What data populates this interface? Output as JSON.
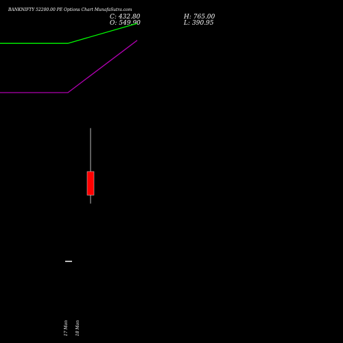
{
  "header": {
    "title": "BANKNIFTY 52200.00 PE Options Chart MunafaSutra.com",
    "ohlc": {
      "c_label": "C:",
      "c_value": "432.80",
      "o_label": "O:",
      "o_value": "549.90",
      "h_label": "H:",
      "h_value": "765.00",
      "l_label": "L:",
      "l_value": "390.95"
    }
  },
  "chart_data": {
    "type": "candlestick",
    "categories": [
      "17 Mon",
      "18 Mon"
    ],
    "candles": [
      {
        "date": "17 Mon",
        "open": 11,
        "high": 11,
        "low": 11,
        "close": 11,
        "color": "#ffffff"
      },
      {
        "date": "18 Mon",
        "open": 549.9,
        "high": 765.0,
        "low": 390.95,
        "close": 432.8,
        "color": "#ff0000"
      }
    ],
    "ylim": [
      -300,
      1400
    ],
    "overlays": [
      {
        "color": "#00ff00",
        "points": [
          [
            0,
            1185
          ],
          [
            1,
            1185
          ],
          [
            2,
            1284
          ]
        ]
      },
      {
        "color": "#b000b0",
        "points": [
          [
            0,
            941
          ],
          [
            1,
            941
          ],
          [
            2,
            1200
          ]
        ]
      }
    ],
    "wick_color": "#bbbbbb",
    "background": "#000000"
  }
}
